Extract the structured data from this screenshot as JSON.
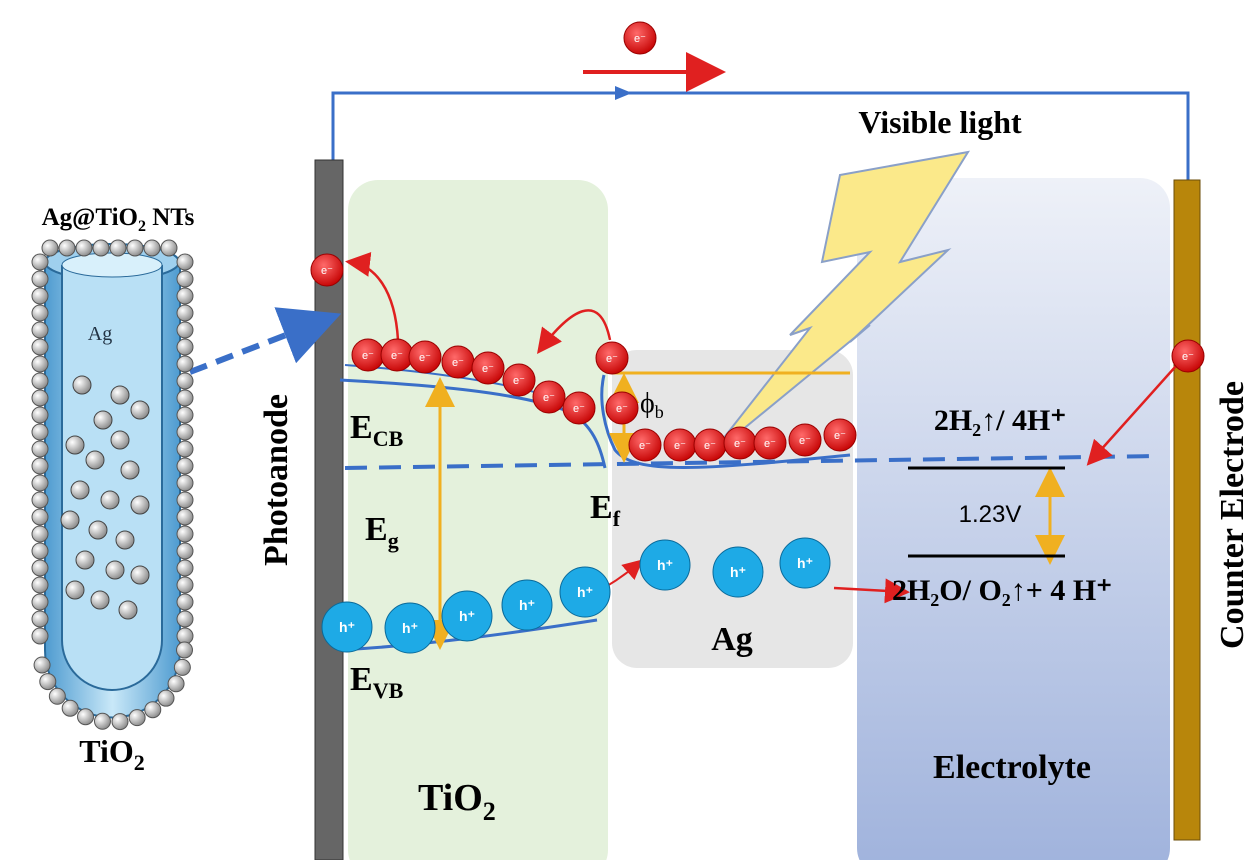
{
  "tube_title": {
    "main": "Ag@TiO",
    "sub": "2",
    "tail": " NTs"
  },
  "tube_inner": "Ag",
  "tube_outer": {
    "main": "TiO",
    "sub": "2"
  },
  "light": "Visible light",
  "photoanode": "Photoanode",
  "counter": "Counter Electrode",
  "ecb": {
    "main": "E",
    "sub": "CB"
  },
  "evb": {
    "main": "E",
    "sub": "VB"
  },
  "eg": {
    "main": "E",
    "sub": "g"
  },
  "ef": {
    "main": "E",
    "sub": "f"
  },
  "phi": {
    "main": "ϕ",
    "sub": "b"
  },
  "tio2_region": {
    "main": "TiO",
    "sub": "2"
  },
  "ag_region": "Ag",
  "electrolyte": "Electrolyte",
  "reaction_top": "2H₂↑/ 4H⁺",
  "reaction_bottom": "2H₂O/ O₂↑+ 4 H⁺",
  "voltage": "1.23V",
  "electron": "e⁻",
  "hole": "h⁺"
}
